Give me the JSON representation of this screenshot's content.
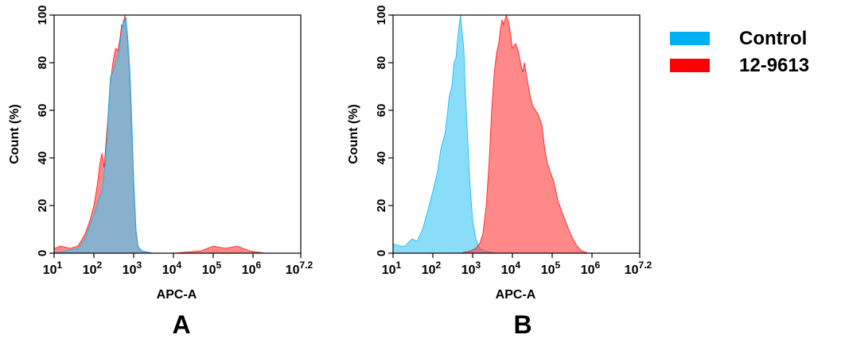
{
  "legend": [
    {
      "label": "Control",
      "color": "#00b0f0"
    },
    {
      "label": "12-9613",
      "color": "#ff0000"
    }
  ],
  "chart_data": [
    {
      "type": "area",
      "panel": "A",
      "xlabel": "APC-A",
      "ylabel": "Count  (%)",
      "x_scale": "log10",
      "xlim": [
        10,
        15848932
      ],
      "ylim": [
        0,
        100
      ],
      "x_ticks": [
        {
          "base": "10",
          "exp": "1"
        },
        {
          "base": "10",
          "exp": "2"
        },
        {
          "base": "10",
          "exp": "3"
        },
        {
          "base": "10",
          "exp": "4"
        },
        {
          "base": "10",
          "exp": "5"
        },
        {
          "base": "10",
          "exp": "6"
        },
        {
          "base": "10",
          "exp": "7.2"
        }
      ],
      "y_ticks": [
        "0",
        "20",
        "40",
        "60",
        "80",
        "100"
      ],
      "series": [
        {
          "name": "12-9613",
          "color": "#ff0000",
          "points": [
            [
              10,
              2
            ],
            [
              15,
              3
            ],
            [
              25,
              2
            ],
            [
              40,
              3
            ],
            [
              60,
              8
            ],
            [
              80,
              14
            ],
            [
              100,
              20
            ],
            [
              120,
              28
            ],
            [
              140,
              37
            ],
            [
              160,
              42
            ],
            [
              180,
              36
            ],
            [
              220,
              55
            ],
            [
              260,
              72
            ],
            [
              300,
              80
            ],
            [
              350,
              86
            ],
            [
              400,
              85
            ],
            [
              450,
              90
            ],
            [
              500,
              96
            ],
            [
              550,
              95
            ],
            [
              600,
              100
            ],
            [
              650,
              94
            ],
            [
              700,
              88
            ],
            [
              800,
              72
            ],
            [
              900,
              50
            ],
            [
              1000,
              28
            ],
            [
              1150,
              8
            ],
            [
              1300,
              2
            ],
            [
              1600,
              1
            ],
            [
              3000,
              0
            ],
            [
              10000,
              0
            ],
            [
              50000,
              1
            ],
            [
              100000,
              3
            ],
            [
              200000,
              2
            ],
            [
              400000,
              3
            ],
            [
              800000,
              1
            ],
            [
              2000000,
              0
            ],
            [
              15848932,
              0
            ]
          ]
        },
        {
          "name": "Control",
          "color": "#00b0f0",
          "points": [
            [
              10,
              0
            ],
            [
              20,
              1
            ],
            [
              40,
              2
            ],
            [
              60,
              6
            ],
            [
              80,
              12
            ],
            [
              100,
              16
            ],
            [
              130,
              22
            ],
            [
              160,
              26
            ],
            [
              200,
              40
            ],
            [
              230,
              60
            ],
            [
              260,
              74
            ],
            [
              300,
              76
            ],
            [
              350,
              80
            ],
            [
              400,
              82
            ],
            [
              450,
              88
            ],
            [
              500,
              93
            ],
            [
              550,
              98
            ],
            [
              600,
              97
            ],
            [
              650,
              99
            ],
            [
              700,
              92
            ],
            [
              800,
              78
            ],
            [
              900,
              56
            ],
            [
              1000,
              32
            ],
            [
              1150,
              10
            ],
            [
              1300,
              3
            ],
            [
              1600,
              1
            ],
            [
              3000,
              0
            ],
            [
              15848932,
              0
            ]
          ]
        }
      ]
    },
    {
      "type": "area",
      "panel": "B",
      "xlabel": "APC-A",
      "ylabel": "Count  (%)",
      "x_scale": "log10",
      "xlim": [
        10,
        15848932
      ],
      "ylim": [
        0,
        100
      ],
      "x_ticks": [
        {
          "base": "10",
          "exp": "1"
        },
        {
          "base": "10",
          "exp": "2"
        },
        {
          "base": "10",
          "exp": "3"
        },
        {
          "base": "10",
          "exp": "4"
        },
        {
          "base": "10",
          "exp": "5"
        },
        {
          "base": "10",
          "exp": "6"
        },
        {
          "base": "10",
          "exp": "7.2"
        }
      ],
      "y_ticks": [
        "0",
        "20",
        "40",
        "60",
        "80",
        "100"
      ],
      "series": [
        {
          "name": "Control",
          "color": "#00b0f0",
          "points": [
            [
              10,
              4
            ],
            [
              15,
              3
            ],
            [
              20,
              3
            ],
            [
              30,
              6
            ],
            [
              40,
              5
            ],
            [
              55,
              10
            ],
            [
              75,
              18
            ],
            [
              100,
              26
            ],
            [
              130,
              34
            ],
            [
              160,
              44
            ],
            [
              200,
              50
            ],
            [
              230,
              58
            ],
            [
              260,
              66
            ],
            [
              300,
              70
            ],
            [
              340,
              80
            ],
            [
              380,
              82
            ],
            [
              420,
              90
            ],
            [
              460,
              96
            ],
            [
              500,
              100
            ],
            [
              540,
              94
            ],
            [
              600,
              86
            ],
            [
              650,
              70
            ],
            [
              750,
              48
            ],
            [
              850,
              30
            ],
            [
              1000,
              14
            ],
            [
              1200,
              6
            ],
            [
              1500,
              2
            ],
            [
              2000,
              1
            ],
            [
              4000,
              0
            ],
            [
              15848932,
              0
            ]
          ]
        },
        {
          "name": "12-9613",
          "color": "#ff0000",
          "points": [
            [
              10,
              0
            ],
            [
              500,
              0
            ],
            [
              900,
              1
            ],
            [
              1200,
              2
            ],
            [
              1500,
              4
            ],
            [
              1800,
              8
            ],
            [
              2200,
              20
            ],
            [
              2600,
              38
            ],
            [
              3000,
              60
            ],
            [
              3500,
              76
            ],
            [
              4000,
              84
            ],
            [
              4500,
              88
            ],
            [
              5000,
              94
            ],
            [
              5500,
              98
            ],
            [
              6000,
              96
            ],
            [
              7000,
              100
            ],
            [
              8000,
              97
            ],
            [
              9000,
              92
            ],
            [
              10000,
              86
            ],
            [
              12000,
              88
            ],
            [
              14000,
              85
            ],
            [
              16000,
              80
            ],
            [
              18000,
              76
            ],
            [
              20000,
              80
            ],
            [
              24000,
              72
            ],
            [
              28000,
              66
            ],
            [
              32000,
              62
            ],
            [
              38000,
              60
            ],
            [
              45000,
              58
            ],
            [
              55000,
              54
            ],
            [
              65000,
              44
            ],
            [
              75000,
              38
            ],
            [
              90000,
              34
            ],
            [
              110000,
              30
            ],
            [
              140000,
              22
            ],
            [
              170000,
              18
            ],
            [
              210000,
              14
            ],
            [
              260000,
              10
            ],
            [
              330000,
              6
            ],
            [
              420000,
              3
            ],
            [
              550000,
              1
            ],
            [
              800000,
              0
            ],
            [
              15848932,
              0
            ]
          ]
        }
      ]
    }
  ]
}
